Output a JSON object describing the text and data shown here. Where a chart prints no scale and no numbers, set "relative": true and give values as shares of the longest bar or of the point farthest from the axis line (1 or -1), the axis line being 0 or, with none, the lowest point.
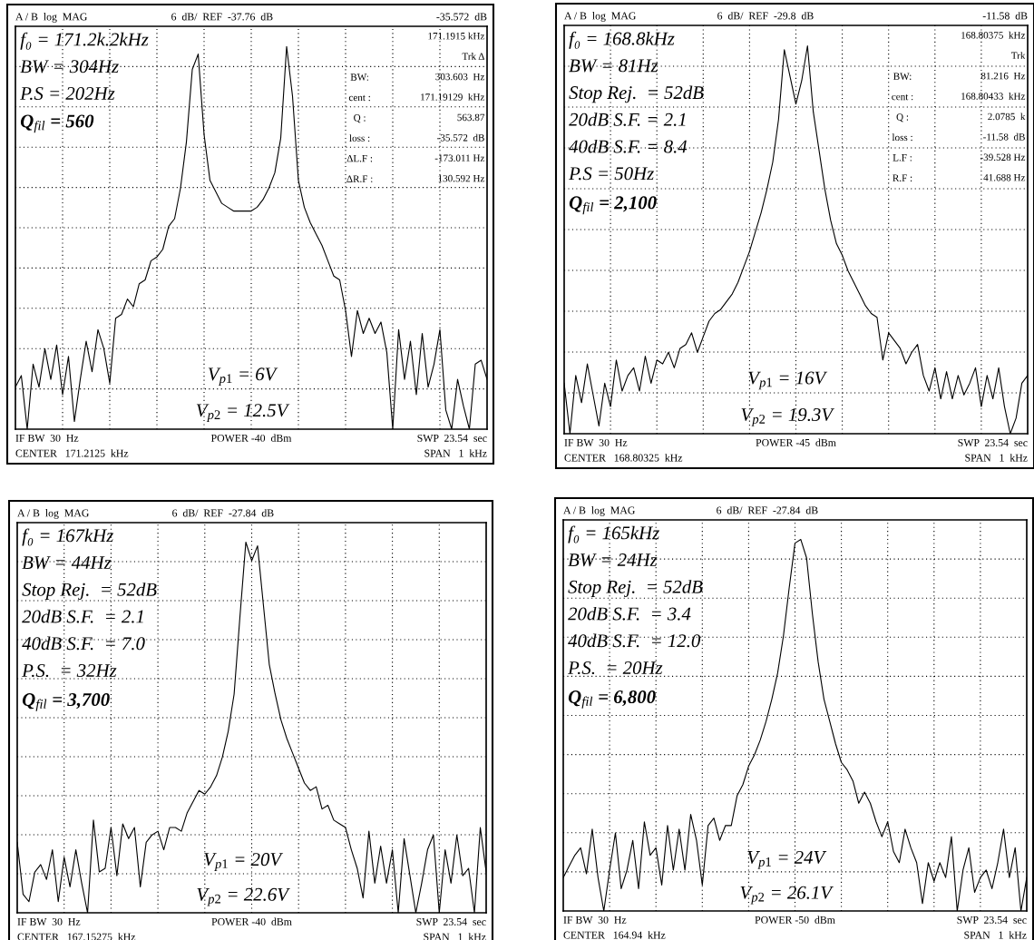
{
  "chart_data": [
    {
      "type": "line",
      "title": "A / B  log  MAG",
      "subtitle": "6  dB/  REF  -37.76  dB",
      "relative": true,
      "grid": true,
      "categories": [
        null,
        null,
        null,
        null,
        null,
        null,
        null,
        null,
        null,
        null,
        null,
        null,
        null,
        null,
        null,
        null,
        null,
        null,
        null,
        null,
        null,
        null,
        null,
        null,
        null,
        null,
        null,
        null,
        null,
        null,
        null,
        null,
        null,
        null,
        null,
        null,
        null,
        null,
        null,
        null,
        null,
        null,
        null,
        null,
        null,
        null,
        null,
        null,
        null,
        null,
        null,
        null,
        null,
        null,
        null,
        null,
        null,
        null,
        null,
        null,
        null,
        null,
        null,
        null,
        null,
        null,
        null,
        null,
        null,
        null,
        null,
        null,
        null,
        null,
        null,
        null,
        null,
        null,
        null,
        null,
        null
      ],
      "series": [
        {
          "color": "#000000",
          "values": [
            0.11,
            0.14,
            0,
            0.17,
            0.11,
            0.21,
            0.13,
            0.22,
            0.09,
            0.19,
            0.02,
            0.13,
            0.23,
            0.15,
            0.26,
            0.21,
            0.12,
            0.29,
            0.3,
            0.34,
            0.32,
            0.38,
            0.39,
            0.44,
            0.45,
            0.47,
            0.53,
            0.55,
            0.63,
            0.75,
            0.94,
            0.98,
            0.77,
            0.65,
            0.62,
            0.59,
            0.58,
            0.57,
            0.57,
            0.57,
            0.57,
            0.58,
            0.6,
            0.63,
            0.67,
            0.76,
            1,
            0.87,
            0.65,
            0.58,
            0.54,
            0.51,
            0.48,
            0.44,
            0.4,
            0.39,
            0.31,
            0.19,
            0.31,
            0.25,
            0.29,
            0.25,
            0.28,
            0.2,
            0,
            0.26,
            0.13,
            0.23,
            0.09,
            0.25,
            0.11,
            0.17,
            0.26,
            0.05,
            0,
            0.13,
            0.06,
            0,
            0.17,
            0.18,
            0.13
          ]
        }
      ],
      "annotations": [
        "IF BW  30  Hz",
        "CENTER   171.2125  kHz",
        "POWER -40  dBm",
        "SWP  23.54  sec",
        "SPAN   1  kHz",
        "f₀ = 171.2k.2kHz\nBW = 304Hz\nP.S = 202Hz",
        "Q$_{fil}$ = 560",
        "V$_{p1}$ = 6V",
        "V$_{p2}$ = 12.5V",
        "-35.572  dB",
        "171.1915 kHz\nTrk Δ\n303.603  Hz\n171.19129  kHz\n563.87\n-35.572  dB\n-173.011 Hz\n130.592 Hz",
        "BW:\ncent :\nQ :\nloss :\nΔL.F :\nΔR.F :"
      ]
    },
    {
      "type": "line",
      "title": "A / B  log  MAG",
      "subtitle": "6  dB/  REF  -29.8  dB",
      "relative": true,
      "grid": true,
      "categories": [
        null,
        null,
        null,
        null,
        null,
        null,
        null,
        null,
        null,
        null,
        null,
        null,
        null,
        null,
        null,
        null,
        null,
        null,
        null,
        null,
        null,
        null,
        null,
        null,
        null,
        null,
        null,
        null,
        null,
        null,
        null,
        null,
        null,
        null,
        null,
        null,
        null,
        null,
        null,
        null,
        null,
        null,
        null,
        null,
        null,
        null,
        null,
        null,
        null,
        null,
        null,
        null,
        null,
        null,
        null,
        null,
        null,
        null,
        null,
        null,
        null,
        null,
        null,
        null,
        null,
        null,
        null,
        null,
        null,
        null,
        null,
        null,
        null,
        null,
        null,
        null,
        null,
        null,
        null,
        null,
        null
      ],
      "series": [
        {
          "color": "#000000",
          "values": [
            0.13,
            0,
            0.15,
            0.08,
            0.18,
            0.1,
            0.02,
            0.13,
            0.07,
            0.19,
            0.11,
            0.15,
            0.17,
            0.11,
            0.2,
            0.13,
            0.19,
            0.18,
            0.21,
            0.17,
            0.22,
            0.23,
            0.26,
            0.21,
            0.25,
            0.29,
            0.31,
            0.32,
            0.34,
            0.36,
            0.39,
            0.43,
            0.47,
            0.52,
            0.57,
            0.63,
            0.7,
            0.81,
            0.99,
            0.92,
            0.85,
            0.91,
            1,
            0.83,
            0.73,
            0.63,
            0.55,
            0.49,
            0.46,
            0.42,
            0.39,
            0.36,
            0.33,
            0.31,
            0.3,
            0.19,
            0.26,
            0.24,
            0.22,
            0.18,
            0.21,
            0.23,
            0.15,
            0.11,
            0.17,
            0.09,
            0.16,
            0.09,
            0.15,
            0.1,
            0.13,
            0.17,
            0.07,
            0.15,
            0.09,
            0.17,
            0.07,
            0,
            0.04,
            0.13,
            0.15
          ]
        }
      ],
      "annotations": [
        "IF BW  30  Hz",
        "CENTER   168.80325  kHz",
        "POWER -45  dBm",
        "SWP  23.54  sec",
        "SPAN   1  kHz",
        "f₀ = 168.8kHz\nBW = 81Hz\nStop Rej.  = 52dB\n20dB S.F. = 2.1\n40dB S.F. = 8.4\nP.S = 50Hz",
        "Q$_{fil}$ = 2,100",
        "V$_{p1}$ = 16V",
        "V$_{p2}$ = 19.3V",
        "-11.58  dB",
        "168.80375  kHz\nTrk\n81.216  Hz\n168.80433  kHz\n2.0785  k\n-11.58  dB\n-39.528 Hz\n41.688 Hz",
        "BW:\ncent :\nQ :\nloss :\nL.F :\nR.F :"
      ]
    },
    {
      "type": "line",
      "title": "A / B  log  MAG",
      "subtitle": "6  dB/  REF  -27.84  dB",
      "relative": true,
      "grid": true,
      "categories": [
        null,
        null,
        null,
        null,
        null,
        null,
        null,
        null,
        null,
        null,
        null,
        null,
        null,
        null,
        null,
        null,
        null,
        null,
        null,
        null,
        null,
        null,
        null,
        null,
        null,
        null,
        null,
        null,
        null,
        null,
        null,
        null,
        null,
        null,
        null,
        null,
        null,
        null,
        null,
        null,
        null,
        null,
        null,
        null,
        null,
        null,
        null,
        null,
        null,
        null,
        null,
        null,
        null,
        null,
        null,
        null,
        null,
        null,
        null,
        null,
        null,
        null,
        null,
        null,
        null,
        null,
        null,
        null,
        null,
        null,
        null,
        null,
        null,
        null,
        null,
        null,
        null,
        null,
        null,
        null,
        null
      ],
      "series": [
        {
          "color": "#000000",
          "values": [
            0.19,
            0.05,
            0.03,
            0.11,
            0.13,
            0.09,
            0.17,
            0.03,
            0.15,
            0.07,
            0.17,
            0.08,
            0,
            0.25,
            0.11,
            0.12,
            0.23,
            0.1,
            0.24,
            0.2,
            0.23,
            0.07,
            0.19,
            0.21,
            0.22,
            0.17,
            0.23,
            0.23,
            0.22,
            0.27,
            0.3,
            0.33,
            0.32,
            0.34,
            0.37,
            0.42,
            0.49,
            0.59,
            0.8,
            1,
            0.95,
            0.99,
            0.83,
            0.67,
            0.59,
            0.52,
            0.47,
            0.43,
            0.39,
            0.35,
            0.33,
            0.34,
            0.28,
            0.29,
            0.25,
            0.24,
            0.23,
            0.17,
            0.12,
            0.04,
            0.22,
            0.08,
            0.18,
            0.08,
            0.17,
            0,
            0.2,
            0.1,
            0,
            0.08,
            0.17,
            0.21,
            0,
            0.17,
            0.08,
            0.21,
            0.1,
            0.12,
            0,
            0.23,
            0.11
          ]
        }
      ],
      "annotations": [
        "IF BW  30  Hz",
        "CENTER   167.15275  kHz",
        "POWER -40  dBm",
        "SWP  23.54  sec",
        "SPAN   1  kHz",
        "f₀ = 167kHz\nBW = 44Hz\nStop Rej.  = 52dB\n20dB S.F.  = 2.1\n40dB S.F.  = 7.0\nP.S.  = 32Hz",
        "Q$_{fil}$ = 3,700",
        "V$_{p1}$ = 20V",
        "V$_{p2}$ = 22.6V"
      ]
    },
    {
      "type": "line",
      "title": "A / B  log  MAG",
      "subtitle": "6  dB/  REF  -27.84  dB",
      "relative": true,
      "grid": true,
      "categories": [
        null,
        null,
        null,
        null,
        null,
        null,
        null,
        null,
        null,
        null,
        null,
        null,
        null,
        null,
        null,
        null,
        null,
        null,
        null,
        null,
        null,
        null,
        null,
        null,
        null,
        null,
        null,
        null,
        null,
        null,
        null,
        null,
        null,
        null,
        null,
        null,
        null,
        null,
        null,
        null,
        null,
        null,
        null,
        null,
        null,
        null,
        null,
        null,
        null,
        null,
        null,
        null,
        null,
        null,
        null,
        null,
        null,
        null,
        null,
        null,
        null,
        null,
        null,
        null,
        null,
        null,
        null,
        null,
        null,
        null,
        null,
        null,
        null,
        null,
        null,
        null,
        null,
        null,
        null,
        null,
        null
      ],
      "series": [
        {
          "color": "#000000",
          "values": [
            0.09,
            0.12,
            0.15,
            0.17,
            0.1,
            0.22,
            0.09,
            0,
            0.11,
            0.21,
            0.06,
            0.11,
            0.19,
            0.06,
            0.24,
            0.15,
            0.17,
            0.07,
            0.23,
            0.11,
            0.22,
            0.11,
            0.26,
            0.19,
            0.07,
            0.23,
            0.25,
            0.19,
            0.23,
            0.23,
            0.31,
            0.34,
            0.39,
            0.42,
            0.46,
            0.51,
            0.57,
            0.64,
            0.74,
            0.87,
            0.99,
            1,
            0.95,
            0.8,
            0.67,
            0.57,
            0.51,
            0.45,
            0.4,
            0.38,
            0.35,
            0.29,
            0.32,
            0.29,
            0.24,
            0.2,
            0.24,
            0.16,
            0.13,
            0.22,
            0.17,
            0.13,
            0.02,
            0.13,
            0.08,
            0.13,
            0.09,
            0.2,
            0,
            0.11,
            0.17,
            0.05,
            0.09,
            0.11,
            0.06,
            0.13,
            0.22,
            0.09,
            0.17,
            0,
            0.09
          ]
        }
      ],
      "annotations": [
        "IF BW  30  Hz",
        "CENTER   164.94  kHz",
        "POWER -50  dBm",
        "SWP  23.54  sec",
        "SPAN   1  kHz",
        "f₀ = 165kHz\nBW = 24Hz\nStop Rej.  = 52dB\n20dB S.F.  = 3.4\n40dB S.F.  = 12.0\nP.S.  = 20Hz",
        "Q$_{fil}$ = 6,800",
        "V$_{p1}$ = 24V",
        "V$_{p2}$ = 26.1V"
      ]
    }
  ]
}
